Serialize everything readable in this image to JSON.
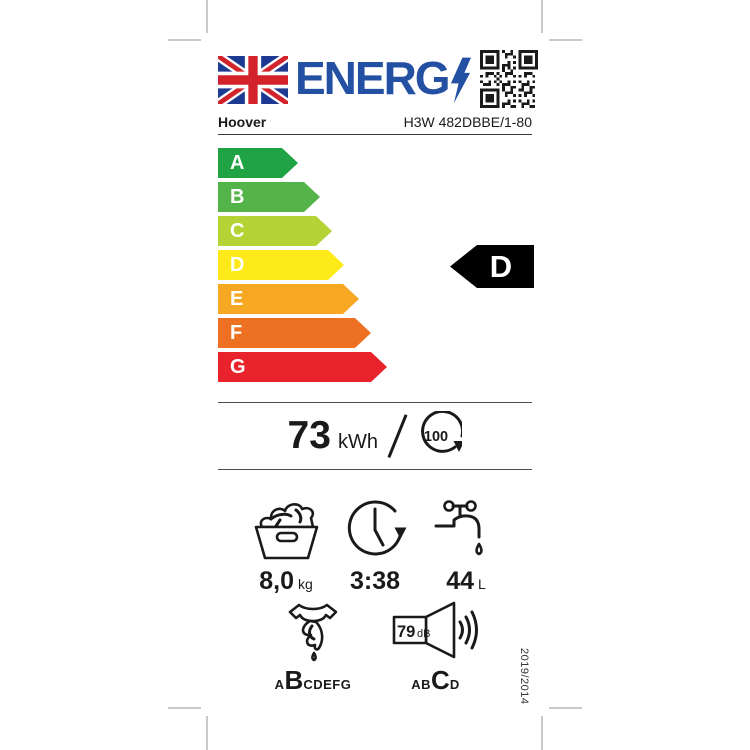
{
  "header": {
    "logo_text": "ENERG",
    "brand": "Hoover",
    "model": "H3W 482DBBE/1-80",
    "logo_color": "#2350a2"
  },
  "flag_colors": {
    "blue": "#1d3a93",
    "red": "#d2232c",
    "white": "#ffffff"
  },
  "scale": {
    "grades": [
      {
        "letter": "A",
        "color": "#1fa344"
      },
      {
        "letter": "B",
        "color": "#54b349"
      },
      {
        "letter": "C",
        "color": "#b5d334"
      },
      {
        "letter": "D",
        "color": "#feea19"
      },
      {
        "letter": "E",
        "color": "#f6a822"
      },
      {
        "letter": "F",
        "color": "#ee7123"
      },
      {
        "letter": "G",
        "color": "#e8232b"
      }
    ]
  },
  "rating": {
    "letter": "D",
    "arrow_color": "#000000"
  },
  "energy": {
    "value": "73",
    "unit": "kWh",
    "cycles": "100"
  },
  "capacity": {
    "value": "8,0",
    "unit": "kg"
  },
  "duration": {
    "value": "3:38"
  },
  "water": {
    "value": "44",
    "unit": "L"
  },
  "spin_class": {
    "prefix": "A",
    "rated": "B",
    "suffix": "CDEFG"
  },
  "noise": {
    "value": "79",
    "unit": "dB",
    "prefix": "AB",
    "rated": "C",
    "suffix": "D"
  },
  "regulation": "2019/2014",
  "icons": {
    "flag": "union-jack-flag",
    "bolt": "lightning-bolt-icon",
    "qr": "qr-code",
    "cycles": "cycles-circle-arrow-icon",
    "capacity": "laundry-basket-icon",
    "duration": "clock-icon",
    "water": "tap-icon",
    "spin": "spin-dry-icon",
    "noise": "speaker-icon"
  }
}
